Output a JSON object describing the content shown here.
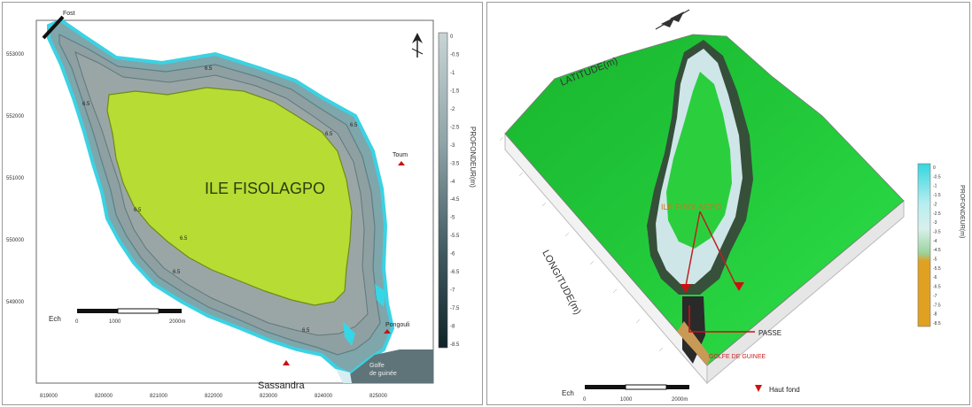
{
  "left_map": {
    "island_label": "ILE FISOLAGPO",
    "place_labels": {
      "north_tip": "Fost",
      "east_village": "Toum",
      "southeast_village": "Pongouli",
      "south_town": "Sassandra",
      "gulf": "Golfe\nde guinée"
    },
    "contour_labels": [
      "6.5",
      "6.5",
      "6.5",
      "6.5",
      "6.5",
      "6.5",
      "6.5",
      "6.5"
    ],
    "x_ticks": [
      "819000",
      "820000",
      "821000",
      "822000",
      "823000",
      "824000",
      "825000"
    ],
    "y_ticks": [
      "553000",
      "552000",
      "551000",
      "550000",
      "549000"
    ],
    "legend_values": [
      "0",
      "-0.5",
      "-1",
      "-1.5",
      "-2",
      "-2.5",
      "-3",
      "-3.5",
      "-4",
      "-4.5",
      "-5",
      "-5.5",
      "-6",
      "-6.5",
      "-7",
      "-7.5",
      "-8",
      "-8.5"
    ],
    "legend_title": "PROFONDEUR(m)",
    "scale_label": "Ech",
    "scale_ticks": [
      "0",
      "1000",
      "2000m"
    ],
    "colors": {
      "land": "#b7dc33",
      "water_shallow": "#7cc7cf",
      "water_deep": "#143c42",
      "shore_cyan": "#37d6e6"
    }
  },
  "right_map": {
    "axis_latitude": "LATITUDE(m)",
    "axis_longitude": "LONGITUDE(m)",
    "inner_label": "ILE FISOLAGPO",
    "pass_label": "PASSE",
    "gulf_label": "GOLFE DE GUINEE",
    "shoal_legend": "Haut fond",
    "legend_values": [
      "0",
      "-0.5",
      "-1",
      "-1.5",
      "-2",
      "-2.5",
      "-3",
      "-3.5",
      "-4",
      "-4.5",
      "-5",
      "-5.5",
      "-6",
      "-6.5",
      "-7",
      "-7.5",
      "-8",
      "-8.5"
    ],
    "legend_title": "PROFONDEUR(m)",
    "scale_label": "Ech",
    "scale_ticks": [
      "0",
      "1000",
      "2000m"
    ],
    "colors": {
      "terrain_green": "#22c93a",
      "legend_top": "#35d6e0",
      "legend_bottom": "#e0a020",
      "red_marker": "#cc1111"
    }
  }
}
